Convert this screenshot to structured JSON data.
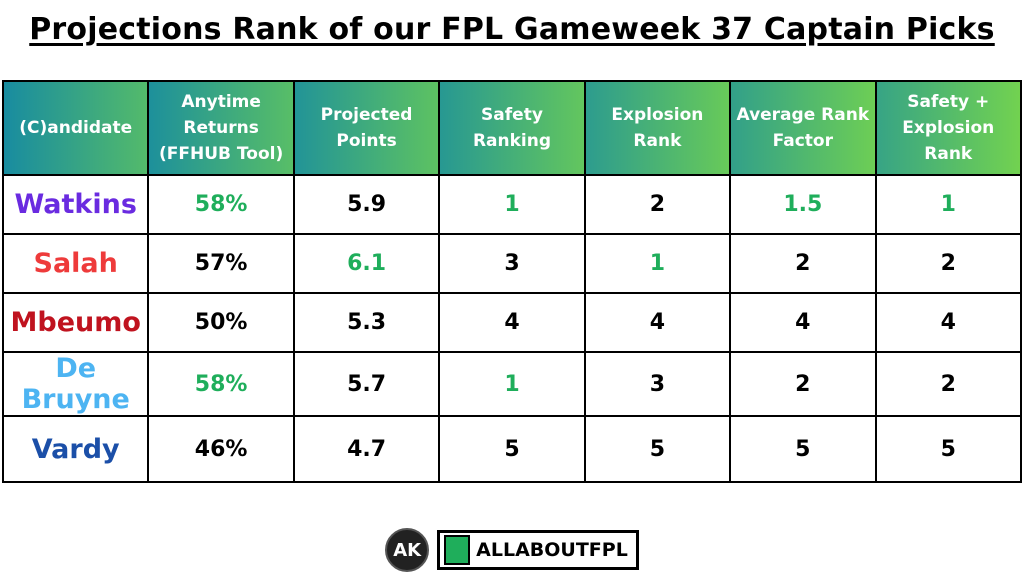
{
  "title": "Projections Rank of our FPL Gameweek 37 Captain Picks",
  "table": {
    "headers": [
      "(C)andidate",
      "Anytime Returns (FFHUB Tool)",
      "Projected Points",
      "Safety Ranking",
      "Explosion Rank",
      "Average Rank Factor",
      "Safety + Explosion Rank"
    ],
    "rows": [
      [
        {
          "text": "Watkins",
          "color": "#6a2be0"
        },
        {
          "text": "58%",
          "color": "#1fae5b"
        },
        "5.9",
        {
          "text": "1",
          "color": "#1fae5b"
        },
        "2",
        {
          "text": "1.5",
          "color": "#1fae5b"
        },
        {
          "text": "1",
          "color": "#1fae5b"
        }
      ],
      [
        {
          "text": "Salah",
          "color": "#ee3b3b"
        },
        "57%",
        {
          "text": "6.1",
          "color": "#1fae5b"
        },
        "3",
        {
          "text": "1",
          "color": "#1fae5b"
        },
        "2",
        "2"
      ],
      [
        {
          "text": "Mbeumo",
          "color": "#c0131f"
        },
        "50%",
        "5.3",
        "4",
        "4",
        "4",
        "4"
      ],
      [
        {
          "text": "De Bruyne",
          "color": "#4db4f2"
        },
        {
          "text": "58%",
          "color": "#1fae5b"
        },
        "5.7",
        {
          "text": "1",
          "color": "#1fae5b"
        },
        "3",
        "2",
        "2"
      ],
      [
        {
          "text": "Vardy",
          "color": "#1b4fa8"
        },
        "46%",
        "4.7",
        "5",
        "5",
        "5",
        "5"
      ]
    ]
  },
  "footer": {
    "logo_mark": "AK",
    "brand": "ALLABOUTFPL"
  }
}
